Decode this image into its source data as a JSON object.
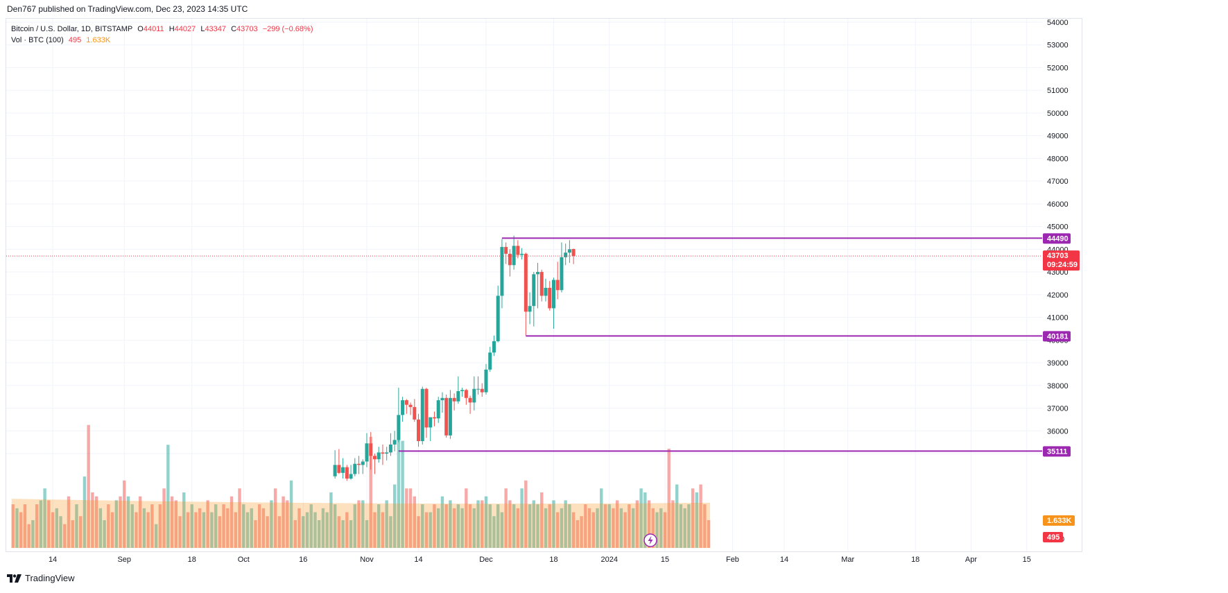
{
  "header": {
    "published": "Den767 published on TradingView.com, Dec 23, 2023 14:35 UTC"
  },
  "legend": {
    "symbol": "Bitcoin / U.S. Dollar, 1D, BITSTAMP",
    "o_label": "O",
    "o_value": "44011",
    "h_label": "H",
    "h_value": "44027",
    "l_label": "L",
    "l_value": "43347",
    "c_label": "C",
    "c_value": "43703",
    "change": "−299 (−0.68%)",
    "vol_label": "Vol · BTC (100)",
    "vol_value": "495",
    "vol_ma": "1.633K"
  },
  "footer": {
    "brand": "TradingView"
  },
  "colors": {
    "up": "#26a69a",
    "down": "#ef5350",
    "level": "#9c27b0",
    "price_tag": "#f23645",
    "vol_ma_fill": "#fccbb1",
    "vol_ma_tag": "#f7931a"
  },
  "chart_data": {
    "type": "candlestick",
    "price_axis": {
      "ylim": [
        34500,
        54000
      ],
      "ticks": [
        "54000",
        "53000",
        "52000",
        "51000",
        "50000",
        "49000",
        "48000",
        "47000",
        "46000",
        "45000",
        "44000",
        "43000",
        "42000",
        "41000",
        "40000",
        "39000",
        "38000",
        "37000",
        "36000",
        "35000"
      ]
    },
    "x_axis": {
      "ticks": [
        {
          "label": "14",
          "date": "2023-08-14"
        },
        {
          "label": "Sep",
          "date": "2023-09-01"
        },
        {
          "label": "18",
          "date": "2023-09-18"
        },
        {
          "label": "Oct",
          "date": "2023-10-01"
        },
        {
          "label": "16",
          "date": "2023-10-16"
        },
        {
          "label": "Nov",
          "date": "2023-11-01"
        },
        {
          "label": "14",
          "date": "2023-11-14"
        },
        {
          "label": "Dec",
          "date": "2023-12-01"
        },
        {
          "label": "18",
          "date": "2023-12-18"
        },
        {
          "label": "2024",
          "date": "2024-01-01"
        },
        {
          "label": "15",
          "date": "2024-01-15"
        },
        {
          "label": "Feb",
          "date": "2024-02-01"
        },
        {
          "label": "14",
          "date": "2024-02-14"
        },
        {
          "label": "Mar",
          "date": "2024-03-01"
        },
        {
          "label": "18",
          "date": "2024-03-18"
        },
        {
          "label": "Apr",
          "date": "2024-04-01"
        },
        {
          "label": "15",
          "date": "2024-04-15"
        }
      ]
    },
    "candles": [
      {
        "date": "2023-10-24",
        "o": 34000,
        "h": 35150,
        "l": 33900,
        "c": 34500
      },
      {
        "date": "2023-10-25",
        "o": 34500,
        "h": 35200,
        "l": 34100,
        "c": 34150
      },
      {
        "date": "2023-10-26",
        "o": 34150,
        "h": 34800,
        "l": 33900,
        "c": 34400
      },
      {
        "date": "2023-10-27",
        "o": 34400,
        "h": 34500,
        "l": 33800,
        "c": 33900
      },
      {
        "date": "2023-10-28",
        "o": 33900,
        "h": 34500,
        "l": 33850,
        "c": 34100
      },
      {
        "date": "2023-10-29",
        "o": 34100,
        "h": 34800,
        "l": 34000,
        "c": 34550
      },
      {
        "date": "2023-10-30",
        "o": 34550,
        "h": 34900,
        "l": 34100,
        "c": 34500
      },
      {
        "date": "2023-10-31",
        "o": 34500,
        "h": 34750,
        "l": 34100,
        "c": 34650
      },
      {
        "date": "2023-11-01",
        "o": 34650,
        "h": 35900,
        "l": 34400,
        "c": 35450
      },
      {
        "date": "2023-11-02",
        "o": 35450,
        "h": 35950,
        "l": 34300,
        "c": 34900
      },
      {
        "date": "2023-11-03",
        "o": 34900,
        "h": 35000,
        "l": 34100,
        "c": 34750
      },
      {
        "date": "2023-11-04",
        "o": 34750,
        "h": 35300,
        "l": 34600,
        "c": 35050
      },
      {
        "date": "2023-11-05",
        "o": 35050,
        "h": 35400,
        "l": 34500,
        "c": 35000
      },
      {
        "date": "2023-11-06",
        "o": 35000,
        "h": 35300,
        "l": 34700,
        "c": 35050
      },
      {
        "date": "2023-11-07",
        "o": 35050,
        "h": 35900,
        "l": 34900,
        "c": 35400
      },
      {
        "date": "2023-11-08",
        "o": 35400,
        "h": 36000,
        "l": 35100,
        "c": 35600
      },
      {
        "date": "2023-11-09",
        "o": 35600,
        "h": 37900,
        "l": 35500,
        "c": 36700
      },
      {
        "date": "2023-11-10",
        "o": 36700,
        "h": 37500,
        "l": 36400,
        "c": 37350
      },
      {
        "date": "2023-11-11",
        "o": 37350,
        "h": 37400,
        "l": 36750,
        "c": 37150
      },
      {
        "date": "2023-11-12",
        "o": 37150,
        "h": 37250,
        "l": 36700,
        "c": 37050
      },
      {
        "date": "2023-11-13",
        "o": 37050,
        "h": 37400,
        "l": 36400,
        "c": 36500
      },
      {
        "date": "2023-11-14",
        "o": 36500,
        "h": 36750,
        "l": 35300,
        "c": 35550
      },
      {
        "date": "2023-11-15",
        "o": 35550,
        "h": 37950,
        "l": 35400,
        "c": 37850
      },
      {
        "date": "2023-11-16",
        "o": 37850,
        "h": 37900,
        "l": 35700,
        "c": 36150
      },
      {
        "date": "2023-11-17",
        "o": 36150,
        "h": 36600,
        "l": 35550,
        "c": 36600
      },
      {
        "date": "2023-11-18",
        "o": 36600,
        "h": 36850,
        "l": 36200,
        "c": 36550
      },
      {
        "date": "2023-11-19",
        "o": 36550,
        "h": 37500,
        "l": 36350,
        "c": 37350
      },
      {
        "date": "2023-11-20",
        "o": 37350,
        "h": 37700,
        "l": 36800,
        "c": 37450
      },
      {
        "date": "2023-11-21",
        "o": 37450,
        "h": 37600,
        "l": 35700,
        "c": 35800
      },
      {
        "date": "2023-11-22",
        "o": 35800,
        "h": 37800,
        "l": 35650,
        "c": 37450
      },
      {
        "date": "2023-11-23",
        "o": 37450,
        "h": 37650,
        "l": 36900,
        "c": 37300
      },
      {
        "date": "2023-11-24",
        "o": 37300,
        "h": 38400,
        "l": 37200,
        "c": 37750
      },
      {
        "date": "2023-11-25",
        "o": 37750,
        "h": 37900,
        "l": 37500,
        "c": 37800
      },
      {
        "date": "2023-11-26",
        "o": 37800,
        "h": 37850,
        "l": 37150,
        "c": 37450
      },
      {
        "date": "2023-11-27",
        "o": 37450,
        "h": 37550,
        "l": 36750,
        "c": 37250
      },
      {
        "date": "2023-11-28",
        "o": 37250,
        "h": 38400,
        "l": 36900,
        "c": 37850
      },
      {
        "date": "2023-11-29",
        "o": 37850,
        "h": 38400,
        "l": 37600,
        "c": 37850
      },
      {
        "date": "2023-11-30",
        "o": 37850,
        "h": 38100,
        "l": 37500,
        "c": 37700
      },
      {
        "date": "2023-12-01",
        "o": 37700,
        "h": 38950,
        "l": 37600,
        "c": 38700
      },
      {
        "date": "2023-12-02",
        "o": 38700,
        "h": 39700,
        "l": 38600,
        "c": 39450
      },
      {
        "date": "2023-12-03",
        "o": 39450,
        "h": 40200,
        "l": 39300,
        "c": 39950
      },
      {
        "date": "2023-12-04",
        "o": 39950,
        "h": 42400,
        "l": 39900,
        "c": 41950
      },
      {
        "date": "2023-12-05",
        "o": 41950,
        "h": 44450,
        "l": 41400,
        "c": 44100
      },
      {
        "date": "2023-12-06",
        "o": 44100,
        "h": 44300,
        "l": 43350,
        "c": 43800
      },
      {
        "date": "2023-12-07",
        "o": 43800,
        "h": 44000,
        "l": 42800,
        "c": 43300
      },
      {
        "date": "2023-12-08",
        "o": 43300,
        "h": 44600,
        "l": 43100,
        "c": 44150
      },
      {
        "date": "2023-12-09",
        "o": 44150,
        "h": 44400,
        "l": 43600,
        "c": 43750
      },
      {
        "date": "2023-12-10",
        "o": 43750,
        "h": 44050,
        "l": 43550,
        "c": 43800
      },
      {
        "date": "2023-12-11",
        "o": 43800,
        "h": 43850,
        "l": 40200,
        "c": 41250
      },
      {
        "date": "2023-12-12",
        "o": 41250,
        "h": 42100,
        "l": 40700,
        "c": 41500
      },
      {
        "date": "2023-12-13",
        "o": 41500,
        "h": 43000,
        "l": 40600,
        "c": 42900
      },
      {
        "date": "2023-12-14",
        "o": 42900,
        "h": 43400,
        "l": 41400,
        "c": 43000
      },
      {
        "date": "2023-12-15",
        "o": 43000,
        "h": 43100,
        "l": 41700,
        "c": 41950
      },
      {
        "date": "2023-12-16",
        "o": 41950,
        "h": 42700,
        "l": 41700,
        "c": 42300
      },
      {
        "date": "2023-12-17",
        "o": 42300,
        "h": 42600,
        "l": 41300,
        "c": 41400
      },
      {
        "date": "2023-12-18",
        "o": 41400,
        "h": 42750,
        "l": 40500,
        "c": 42650
      },
      {
        "date": "2023-12-19",
        "o": 42650,
        "h": 43450,
        "l": 41800,
        "c": 42200
      },
      {
        "date": "2023-12-20",
        "o": 42200,
        "h": 44300,
        "l": 42100,
        "c": 43650
      },
      {
        "date": "2023-12-21",
        "o": 43650,
        "h": 44250,
        "l": 43300,
        "c": 43850
      },
      {
        "date": "2023-12-22",
        "o": 43850,
        "h": 44400,
        "l": 43400,
        "c": 44000
      },
      {
        "date": "2023-12-23",
        "o": 44011,
        "h": 44027,
        "l": 43347,
        "c": 43703
      }
    ],
    "volume": {
      "start_date": "2023-08-04",
      "max": 1.6,
      "values": [
        0.55,
        0.5,
        0.45,
        0.55,
        0.3,
        0.35,
        0.55,
        0.6,
        0.75,
        0.6,
        0.45,
        0.5,
        0.4,
        0.3,
        0.65,
        0.35,
        0.55,
        0.4,
        0.9,
        1.55,
        0.7,
        0.65,
        0.5,
        0.35,
        0.55,
        0.45,
        0.6,
        0.65,
        0.85,
        0.65,
        0.55,
        0.45,
        0.65,
        0.5,
        0.45,
        0.55,
        0.3,
        0.55,
        0.75,
        1.3,
        0.65,
        0.6,
        0.4,
        0.7,
        0.45,
        0.55,
        0.45,
        0.5,
        0.45,
        0.6,
        0.45,
        0.55,
        0.4,
        0.55,
        0.5,
        0.65,
        0.45,
        0.75,
        0.55,
        0.45,
        0.5,
        0.35,
        0.55,
        0.5,
        0.4,
        0.6,
        0.75,
        0.4,
        0.65,
        0.6,
        0.85,
        0.35,
        0.5,
        0.4,
        0.45,
        0.55,
        0.45,
        0.35,
        0.5,
        0.45,
        0.7,
        0.55,
        0.4,
        0.35,
        0.45,
        0.35,
        0.55,
        0.6,
        0.6,
        0.35,
        1.4,
        0.45,
        0.55,
        0.45,
        0.6,
        0.4,
        0.8,
        1.5,
        1.35,
        0.75,
        0.75,
        0.65,
        0.4,
        0.55,
        0.45,
        0.45,
        0.55,
        0.5,
        0.65,
        0.55,
        0.6,
        0.5,
        0.55,
        0.5,
        0.75,
        0.55,
        0.5,
        0.6,
        0.6,
        0.65,
        0.55,
        0.4,
        0.55,
        0.45,
        0.75,
        0.6,
        0.55,
        0.5,
        0.75,
        0.85,
        0.55,
        0.6,
        0.55,
        0.7,
        0.5,
        0.55,
        0.6,
        0.45,
        0.5,
        0.6,
        0.55,
        0.45,
        0.35,
        0.4,
        0.55,
        0.5,
        0.45,
        0.5,
        0.75,
        0.55,
        0.55,
        0.5,
        0.6,
        0.5,
        0.45,
        0.55,
        0.5,
        0.6,
        0.75,
        0.7,
        0.6,
        0.5,
        0.45,
        0.5,
        0.45,
        1.25,
        0.6,
        0.8,
        0.55,
        0.5,
        0.55,
        0.75,
        0.7,
        0.8,
        0.55,
        0.35
      ],
      "ma_value": 1.633
    },
    "levels": [
      {
        "value": 44490,
        "label": "44490",
        "from_date": "2023-12-05"
      },
      {
        "value": 40181,
        "label": "40181",
        "from_date": "2023-12-11"
      },
      {
        "value": 35111,
        "label": "35111",
        "from_date": "2023-11-09"
      }
    ],
    "last_price": {
      "value": 43703,
      "label": "43703",
      "countdown": "09:24:59"
    },
    "vol_tags": {
      "ma_label": "1.633K",
      "last_label": "495",
      "hidden_tick": "0"
    }
  }
}
